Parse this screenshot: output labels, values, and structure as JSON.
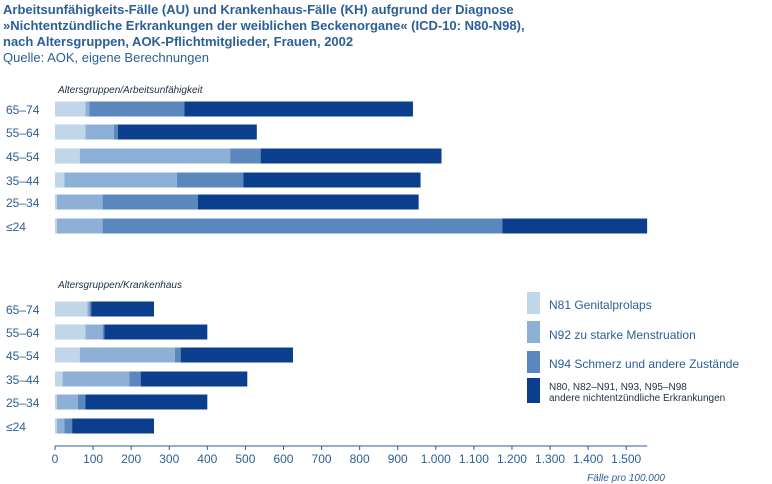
{
  "title": {
    "line1": "Arbeitsunfähigkeits-Fälle (AU) und Krankenhaus-Fälle (KH) aufgrund der Diagnose",
    "line2": "»Nichtentzündliche Erkrankungen der weiblichen Beckenorgane« (ICD-10: N80-N98),",
    "line3": "nach Altersgruppen, AOK-Pflichtmitglieder, Frauen, 2002",
    "source": "Quelle: AOK, eigene Berechnungen"
  },
  "chart_data": {
    "type": "bar",
    "orientation": "horizontal",
    "stacked": true,
    "xlabel": "Fälle pro 100.000",
    "xlim": [
      0,
      1600
    ],
    "xticks": [
      0,
      100,
      200,
      300,
      400,
      500,
      600,
      700,
      800,
      900,
      1000,
      1100,
      1200,
      1300,
      1400,
      1500
    ],
    "xtick_labels": [
      "0",
      "100",
      "200",
      "300",
      "400",
      "500",
      "600",
      "700",
      "800",
      "900",
      "1.000",
      "1.100",
      "1.200",
      "1.300",
      "1.400",
      "1.500"
    ],
    "categories": [
      "65–74",
      "55–64",
      "45–54",
      "35–44",
      "25–34",
      "≤24"
    ],
    "series_names": [
      "N81 Genitalprolaps",
      "N92 zu starke Menstruation",
      "N94 Schmerz und andere Zustände",
      "N80, N82–N91, N93, N95–N98 andere nichtentzündliche Erkrankungen"
    ],
    "colors": [
      "#c2d6ea",
      "#8fb0d6",
      "#5a87bd",
      "#0b3f8d"
    ],
    "panels": [
      {
        "title": "Altersgruppen/Arbeitsunfähigkeit",
        "series": [
          {
            "name": "N81 Genitalprolaps",
            "values": [
              80,
              80,
              65,
              25,
              5,
              5
            ]
          },
          {
            "name": "N92 zu starke Menstruation",
            "values": [
              10,
              75,
              395,
              295,
              120,
              120
            ]
          },
          {
            "name": "N94 Schmerz und andere Zustände",
            "values": [
              250,
              10,
              80,
              175,
              250,
              1050
            ]
          },
          {
            "name": "N80, N82–N91, N93, N95–N98 andere nichtentzündliche Erkrankungen",
            "values": [
              600,
              365,
              475,
              465,
              580,
              380
            ]
          }
        ]
      },
      {
        "title": "Altersgruppen/Krankenhaus",
        "series": [
          {
            "name": "N81 Genitalprolaps",
            "values": [
              85,
              80,
              65,
              20,
              5,
              5
            ]
          },
          {
            "name": "N92 zu starke Menstruation",
            "values": [
              5,
              45,
              250,
              175,
              55,
              20
            ]
          },
          {
            "name": "N94 Schmerz und andere Zustände",
            "values": [
              5,
              5,
              15,
              30,
              20,
              20
            ]
          },
          {
            "name": "N80, N82–N91, N93, N95–N98 andere nichtentzündliche Erkrankungen",
            "values": [
              165,
              270,
              295,
              280,
              320,
              215
            ]
          }
        ]
      }
    ],
    "legend": {
      "position": "bottom-right",
      "items": [
        {
          "label": "N81 Genitalprolaps"
        },
        {
          "label": "N92 zu starke Menstruation"
        },
        {
          "label": "N94 Schmerz und andere Zustände"
        },
        {
          "label_line1": "N80, N82–N91, N93, N95–N98",
          "label_line2": "andere nichtentzündliche Erkrankungen"
        }
      ]
    }
  }
}
